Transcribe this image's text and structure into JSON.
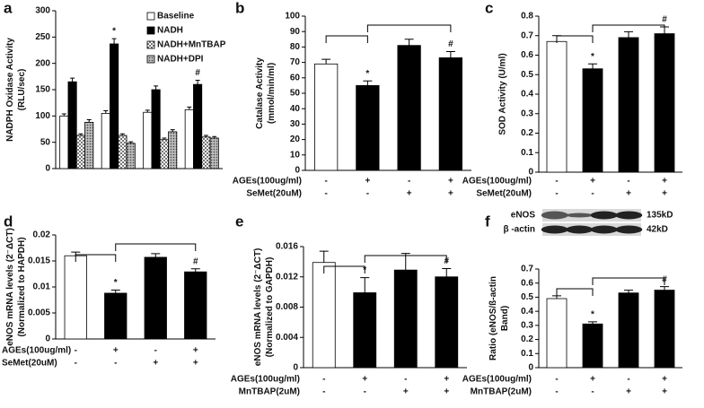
{
  "chart_data": [
    {
      "type": "grouped_bar",
      "panel": "a",
      "ylabel": [
        "NADPH Oxidase Activity",
        "(RLU/sec)"
      ],
      "categories": [
        null,
        null,
        null,
        null
      ],
      "series": [
        {
          "name": "Baseline",
          "color": "#ffffff",
          "values": [
            100,
            105,
            107,
            112
          ],
          "errors": [
            4,
            5,
            4,
            5
          ]
        },
        {
          "name": "NADH",
          "color": "#000000",
          "values": [
            165,
            237,
            150,
            160
          ],
          "errors": [
            7,
            10,
            7,
            8
          ],
          "markers": [
            null,
            "*",
            null,
            "#"
          ]
        },
        {
          "name": "NADH+MnTBAP",
          "color": "#888888",
          "pattern": "checker",
          "values": [
            63,
            63,
            55,
            60
          ],
          "errors": [
            3,
            3,
            3,
            3
          ]
        },
        {
          "name": "NADH+DPI",
          "color": "#888888",
          "pattern": "dots",
          "values": [
            88,
            48,
            70,
            58
          ],
          "errors": [
            5,
            3,
            4,
            3
          ]
        }
      ],
      "ylim": [
        0,
        300
      ],
      "yticks": [
        0,
        50,
        100,
        150,
        200,
        250,
        300
      ],
      "legend": "top-right"
    },
    {
      "type": "bar",
      "panel": "b",
      "ylabel": [
        "Catalase Activity",
        "(mmol/min/ml)"
      ],
      "values": [
        69,
        55,
        81,
        73
      ],
      "errors": [
        3,
        3,
        4,
        4
      ],
      "markers": [
        null,
        "*",
        null,
        "#"
      ],
      "colors": [
        "#ffffff",
        "#000000",
        "#000000",
        "#000000"
      ],
      "treatments": [
        {
          "name": "AGEs(100ug/ml)",
          "levels": [
            "-",
            "+",
            "-",
            "+"
          ]
        },
        {
          "name": "SeMet(20uM)",
          "levels": [
            "-",
            "-",
            "+",
            "+"
          ]
        }
      ],
      "ylim": [
        0,
        100
      ],
      "yticks": [
        0,
        10,
        20,
        30,
        40,
        50,
        60,
        70,
        80,
        90,
        100
      ]
    },
    {
      "type": "bar",
      "panel": "c",
      "ylabel": [
        "SOD Activity (U/ml)"
      ],
      "values": [
        0.67,
        0.53,
        0.69,
        0.71
      ],
      "errors": [
        0.03,
        0.025,
        0.03,
        0.035
      ],
      "markers": [
        null,
        "*",
        null,
        "#"
      ],
      "colors": [
        "#ffffff",
        "#000000",
        "#000000",
        "#000000"
      ],
      "treatments": [
        {
          "name": "AGEs(100ug/ml)",
          "levels": [
            "-",
            "+",
            "-",
            "+"
          ]
        },
        {
          "name": "SeMet(20uM)",
          "levels": [
            "-",
            "-",
            "+",
            "+"
          ]
        }
      ],
      "ylim": [
        0,
        0.8
      ],
      "yticks": [
        0,
        0.1,
        0.2,
        0.3,
        0.4,
        0.5,
        0.6,
        0.7,
        0.8
      ]
    },
    {
      "type": "bar",
      "panel": "d",
      "ylabel": [
        "eNOS mRNA levels (2⁻ΔCT)",
        "(Normalized to HAPDH)"
      ],
      "values": [
        0.016,
        0.0088,
        0.0157,
        0.0129
      ],
      "errors": [
        0.0007,
        0.0006,
        0.0007,
        0.0006
      ],
      "markers": [
        null,
        "*",
        null,
        "#"
      ],
      "colors": [
        "#ffffff",
        "#000000",
        "#000000",
        "#000000"
      ],
      "treatments": [
        {
          "name": "AGEs(100ug/ml)",
          "levels": [
            "-",
            "+",
            "-",
            "+"
          ]
        },
        {
          "name": "SeMet(20uM)",
          "levels": [
            "-",
            "-",
            "+",
            "+"
          ]
        }
      ],
      "ylim": [
        0,
        0.02
      ],
      "yticks": [
        0,
        0.005,
        0.01,
        0.015,
        0.02
      ]
    },
    {
      "type": "bar",
      "panel": "e",
      "ylabel": [
        "eNOS mRNA levels (2⁻ΔCT)",
        "(Normalized to GAPDH)"
      ],
      "values": [
        0.0139,
        0.0099,
        0.0129,
        0.012
      ],
      "errors": [
        0.0015,
        0.002,
        0.0022,
        0.0011
      ],
      "markers": [
        null,
        "*",
        null,
        "#"
      ],
      "colors": [
        "#ffffff",
        "#000000",
        "#000000",
        "#000000"
      ],
      "treatments": [
        {
          "name": "AGEs(100ug/ml)",
          "levels": [
            "-",
            "+",
            "-",
            "+"
          ]
        },
        {
          "name": "MnTBAP(2uM)",
          "levels": [
            "-",
            "-",
            "+",
            "+"
          ]
        }
      ],
      "ylim": [
        0,
        0.016
      ],
      "yticks": [
        0,
        0.004,
        0.008,
        0.012,
        0.016
      ]
    },
    {
      "type": "bar",
      "panel": "f",
      "blot": {
        "rows": [
          "eNOS",
          "β -actin"
        ],
        "sizes": [
          "135kD",
          "42kD"
        ]
      },
      "ylabel": [
        "Ratio (eNOS/ß-actin",
        "Band)"
      ],
      "values": [
        0.49,
        0.31,
        0.53,
        0.55
      ],
      "errors": [
        0.02,
        0.015,
        0.02,
        0.025
      ],
      "markers": [
        null,
        "*",
        null,
        "#"
      ],
      "colors": [
        "#ffffff",
        "#000000",
        "#000000",
        "#000000"
      ],
      "treatments": [
        {
          "name": "AGEs(100ug/ml)",
          "levels": [
            "-",
            "+",
            "-",
            "+"
          ]
        },
        {
          "name": "MnTBAP(2uM)",
          "levels": [
            "-",
            "-",
            "+",
            "+"
          ]
        }
      ],
      "ylim": [
        0,
        0.7
      ],
      "yticks": [
        0,
        0.1,
        0.2,
        0.3,
        0.4,
        0.5,
        0.6,
        0.7
      ]
    }
  ]
}
